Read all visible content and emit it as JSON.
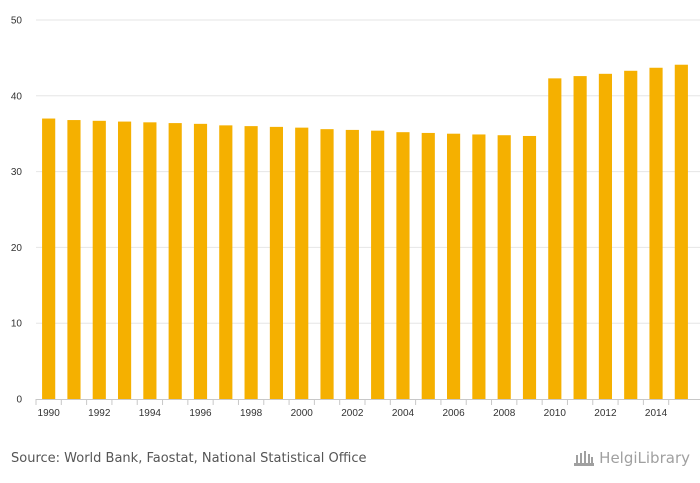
{
  "chart_data": {
    "type": "bar",
    "title": "",
    "xlabel": "",
    "ylabel": "",
    "ylim": [
      0,
      50
    ],
    "yticks": [
      0,
      10,
      20,
      30,
      40,
      50
    ],
    "x_tick_labels": [
      "1990",
      "1992",
      "1994",
      "1996",
      "1998",
      "2000",
      "2002",
      "2004",
      "2006",
      "2008",
      "2010",
      "2012",
      "2014"
    ],
    "categories": [
      "1990",
      "1991",
      "1992",
      "1993",
      "1994",
      "1995",
      "1996",
      "1997",
      "1998",
      "1999",
      "2000",
      "2001",
      "2002",
      "2003",
      "2004",
      "2005",
      "2006",
      "2007",
      "2008",
      "2009",
      "2010",
      "2011",
      "2012",
      "2013",
      "2014",
      "2015"
    ],
    "values": [
      37.0,
      36.8,
      36.7,
      36.6,
      36.5,
      36.4,
      36.3,
      36.1,
      36.0,
      35.9,
      35.8,
      35.6,
      35.5,
      35.4,
      35.2,
      35.1,
      35.0,
      34.9,
      34.8,
      34.7,
      42.3,
      42.6,
      42.9,
      43.3,
      43.7,
      44.1
    ],
    "grid": true,
    "colors": {
      "bar": "#F5B000",
      "grid": "#e6e6e6",
      "axis": "#c8c8c8"
    }
  },
  "footer": {
    "source": "Source: World Bank, Faostat, National Statistical Office",
    "brand": "HelgiLibrary"
  }
}
